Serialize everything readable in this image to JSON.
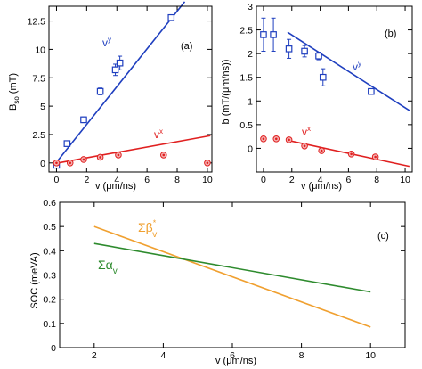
{
  "chart_data": [
    {
      "type": "scatter",
      "panel_label": "(a)",
      "xlabel": "v (μm/ns)",
      "ylabel": "B_so (mT)",
      "ylabel_main": "B",
      "ylabel_sub": "so",
      "ylabel_unit": "(mT)",
      "xlim": [
        -0.5,
        10.3
      ],
      "ylim": [
        -0.8,
        13.8
      ],
      "xticks": [
        0,
        2,
        4,
        6,
        8,
        10
      ],
      "yticks": [
        0,
        2.5,
        5,
        7.5,
        10,
        12.5
      ],
      "ytick_labels": [
        "0",
        "2.5",
        "5",
        "7.5",
        "10",
        "12.5"
      ],
      "series": [
        {
          "name": "vʸ",
          "label_main": "v",
          "label_sup": "y",
          "color": "#1f3fbf",
          "marker": "square",
          "x": [
            0,
            0.7,
            1.8,
            2.9,
            3.9,
            4.2,
            7.6
          ],
          "y": [
            -0.2,
            1.7,
            3.8,
            6.3,
            8.2,
            8.8,
            12.8
          ],
          "yerr": [
            0.2,
            0.2,
            0.25,
            0.3,
            0.5,
            0.6,
            0.25
          ],
          "fit": {
            "x": [
              -0.1,
              8.5
            ],
            "y": [
              -0.1,
              14.2
            ]
          }
        },
        {
          "name": "vˣ",
          "label_main": "v",
          "label_sup": "x",
          "color": "#e02020",
          "marker": "circle",
          "x": [
            0,
            0.9,
            1.8,
            2.9,
            4.1,
            7.1,
            10.0
          ],
          "y": [
            0.0,
            0.0,
            0.3,
            0.5,
            0.7,
            0.7,
            0.0
          ],
          "fit": {
            "x": [
              -0.1,
              10.2
            ],
            "y": [
              -0.05,
              2.4
            ]
          }
        }
      ]
    },
    {
      "type": "scatter",
      "panel_label": "(b)",
      "xlabel": "v (μm/ns)",
      "ylabel": "b (mT/(μm/ns))",
      "xlim": [
        -0.5,
        10.5
      ],
      "ylim": [
        -0.5,
        3.0
      ],
      "xticks": [
        0,
        2,
        4,
        6,
        8,
        10
      ],
      "yticks": [
        -0.5,
        0,
        0.5,
        1,
        1.5,
        2,
        2.5,
        3
      ],
      "ytick_labels": [
        "",
        "0",
        "0.5",
        "1",
        "1.5",
        "2",
        "2.5",
        "3"
      ],
      "series": [
        {
          "name": "vʸ",
          "label_main": "v",
          "label_sup": "y",
          "color": "#1f3fbf",
          "marker": "square",
          "x": [
            0,
            0.7,
            1.8,
            2.9,
            3.9,
            4.2,
            7.6
          ],
          "y": [
            2.4,
            2.4,
            2.1,
            2.05,
            1.95,
            1.5,
            1.2
          ],
          "yerr": [
            0.35,
            0.35,
            0.2,
            0.12,
            0.08,
            0.18,
            0.05
          ],
          "fit": {
            "x": [
              1.7,
              10.3
            ],
            "y": [
              2.45,
              0.8
            ]
          }
        },
        {
          "name": "vˣ",
          "label_main": "v",
          "label_sup": "x",
          "color": "#e02020",
          "marker": "circle",
          "x": [
            0,
            0.9,
            1.8,
            2.9,
            4.1,
            6.2,
            7.9
          ],
          "y": [
            0.2,
            0.2,
            0.18,
            0.05,
            -0.05,
            -0.12,
            -0.18
          ],
          "fit": {
            "x": [
              2.0,
              10.3
            ],
            "y": [
              0.15,
              -0.38
            ]
          }
        }
      ]
    },
    {
      "type": "line",
      "panel_label": "(c)",
      "xlabel": "v (μm/ns)",
      "ylabel": "SOC (meVA)",
      "xlim": [
        1,
        11
      ],
      "ylim": [
        0,
        0.6
      ],
      "xticks": [
        2,
        4,
        6,
        8,
        10
      ],
      "yticks": [
        0,
        0.1,
        0.2,
        0.3,
        0.4,
        0.5,
        0.6
      ],
      "ytick_labels": [
        "0",
        "0.1",
        "0.2",
        "0.3",
        "0.4",
        "0.5",
        "0.6"
      ],
      "series": [
        {
          "name": "Σβ*ᵥ",
          "label_main": "Σβ",
          "label_sup": "*",
          "label_sub": "v",
          "color": "#f0a030",
          "x": [
            2,
            10
          ],
          "y": [
            0.5,
            0.085
          ]
        },
        {
          "name": "Σαᵥ",
          "label_main": "Σα",
          "label_sub": "v",
          "color": "#2e8b2e",
          "x": [
            2,
            10
          ],
          "y": [
            0.43,
            0.23
          ]
        }
      ]
    }
  ]
}
